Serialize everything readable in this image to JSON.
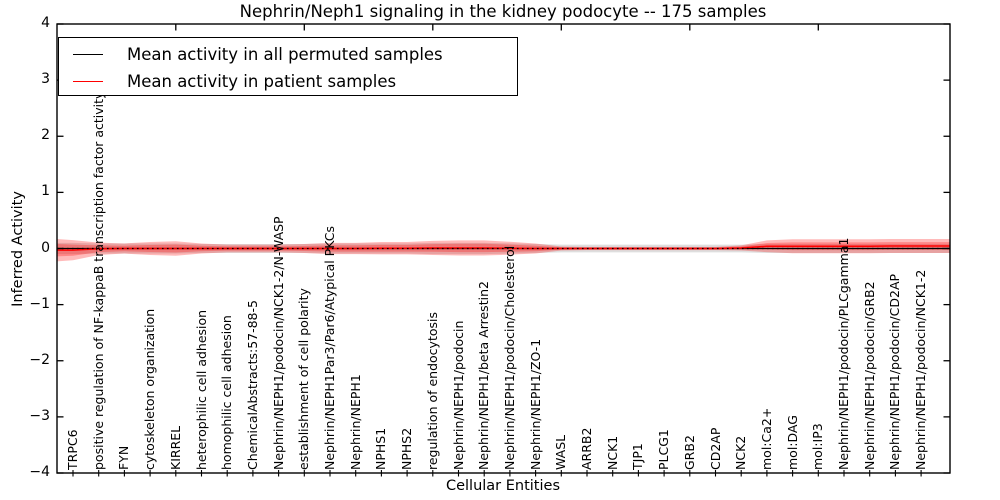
{
  "chart_data": {
    "type": "line",
    "title": "Nephrin/Neph1 signaling in the kidney podocyte -- 175 samples",
    "xlabel": "Cellular Entities",
    "ylabel": "Inferred Activity",
    "ylim": [
      -4,
      4
    ],
    "yticks": [
      4,
      3,
      2,
      1,
      0,
      -1,
      -2,
      -3,
      -4
    ],
    "ytick_labels": [
      "4",
      "3",
      "2",
      "1",
      "0",
      "−1",
      "−2",
      "−3",
      "−4"
    ],
    "grid": false,
    "legend_position": "upper left",
    "categories": [
      "TRPC6",
      "positive regulation of NF-kappaB transcription factor activity",
      "FYN",
      "cytoskeleton organization",
      "KIRREL",
      "heterophilic cell adhesion",
      "homophilic cell adhesion",
      "ChemicalAbstracts:57-88-5",
      "Nephrin/NEPH1/podocin/NCK1-2/N-WASP",
      "establishment of cell polarity",
      "Nephrin/NEPH1Par3/Par6/Atypical PKCs",
      "Nephrin/NEPH1",
      "NPHS1",
      "NPHS2",
      "regulation of endocytosis",
      "Nephrin/NEPH1/podocin",
      "Nephrin/NEPH1/beta Arrestin2",
      "Nephrin/NEPH1/podocin/Cholesterol",
      "Nephrin/NEPH1/ZO-1",
      "WASL",
      "ARRB2",
      "NCK1",
      "TJP1",
      "PLCG1",
      "GRB2",
      "CD2AP",
      "NCK2",
      "mol:Ca2+",
      "mol:DAG",
      "mol:IP3",
      "Nephrin/NEPH1/podocin/PLCgamma1",
      "Nephrin/NEPH1/podocin/GRB2",
      "Nephrin/NEPH1/podocin/CD2AP",
      "Nephrin/NEPH1/podocin/NCK1-2"
    ],
    "series": [
      {
        "name": "Mean activity in all permuted samples",
        "color": "#000000",
        "band_color": "rgba(0,0,0,0.13)",
        "values": [
          0,
          0,
          0,
          0,
          0,
          0,
          0,
          0,
          0,
          0,
          0,
          0,
          0,
          0,
          0,
          0,
          0,
          0,
          0,
          0,
          0,
          0,
          0,
          0,
          0,
          0,
          0,
          0,
          0,
          0,
          0,
          0,
          0,
          0
        ],
        "band_halfwidth": [
          0.1,
          0.09,
          0.09,
          0.09,
          0.09,
          0.08,
          0.08,
          0.08,
          0.08,
          0.08,
          0.09,
          0.09,
          0.09,
          0.09,
          0.1,
          0.1,
          0.1,
          0.09,
          0.08,
          0.07,
          0.07,
          0.07,
          0.07,
          0.07,
          0.07,
          0.07,
          0.07,
          0.08,
          0.08,
          0.08,
          0.08,
          0.08,
          0.08,
          0.08
        ],
        "edge_halfwidth_left": 0.1
      },
      {
        "name": "Mean activity in patient samples",
        "color": "#ff0000",
        "band_color": "rgba(255,0,0,0.27)",
        "values": [
          -0.03,
          -0.005,
          0,
          0,
          0,
          0,
          0,
          0,
          0,
          0,
          0,
          0,
          0.005,
          0.005,
          0.01,
          0.01,
          0.01,
          0.005,
          0,
          0,
          0,
          0,
          0,
          0,
          0,
          0,
          0.01,
          0.04,
          0.04,
          0.04,
          0.04,
          0.04,
          0.045,
          0.045
        ],
        "band_halfwidth": [
          0.18,
          0.11,
          0.09,
          0.115,
          0.13,
          0.09,
          0.07,
          0.07,
          0.07,
          0.08,
          0.1,
          0.1,
          0.11,
          0.11,
          0.125,
          0.135,
          0.135,
          0.115,
          0.09,
          0.035,
          0.03,
          0.03,
          0.03,
          0.03,
          0.03,
          0.03,
          0.045,
          0.105,
          0.125,
          0.125,
          0.125,
          0.125,
          0.125,
          0.125
        ],
        "edge_halfwidth_left": 0.2
      }
    ],
    "zero_line": {
      "style": "dotted",
      "color": "#000000",
      "value": 0
    },
    "top_tick_category_indices": [
      4,
      9,
      14,
      19,
      24,
      29
    ]
  },
  "legend": {
    "items": [
      {
        "label": "Mean activity in all permuted samples",
        "color": "#000000"
      },
      {
        "label": "Mean activity in patient samples",
        "color": "#ff0000"
      }
    ]
  }
}
